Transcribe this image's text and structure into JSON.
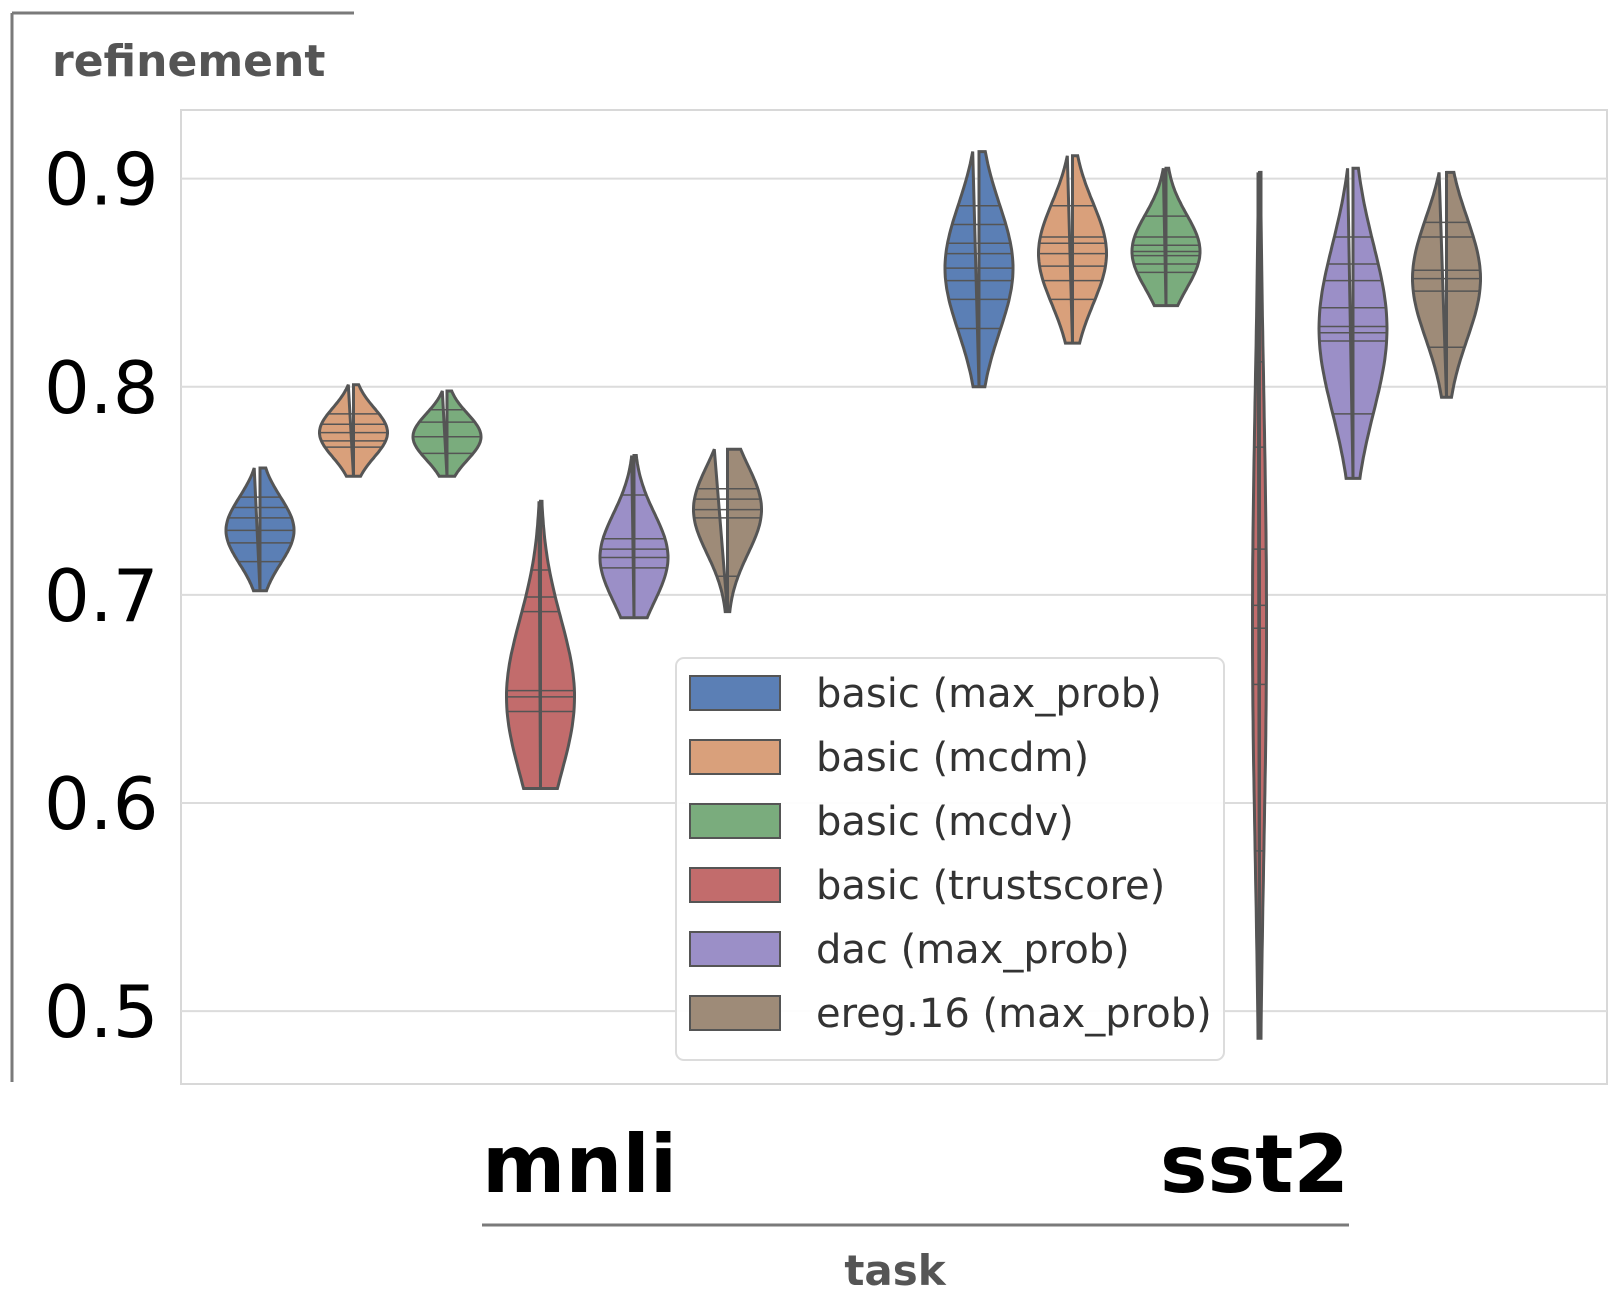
{
  "chart_data": {
    "type": "violin",
    "title": "",
    "ylabel": "refinement",
    "xlabel": "task",
    "ylim": [
      0.465,
      0.933
    ],
    "yticks": [
      "0.5",
      "0.6",
      "0.7",
      "0.8",
      "0.9"
    ],
    "categories": [
      "mnli",
      "sst2"
    ],
    "grid": true,
    "legend_position": "center",
    "series": [
      {
        "name": "basic (max_prob)",
        "color": "#5b7fb5",
        "values": {
          "mnli": {
            "min": 0.702,
            "max": 0.761,
            "median": 0.731,
            "lines": [
              0.716,
              0.725,
              0.731,
              0.737,
              0.742,
              0.747
            ]
          },
          "sst2": {
            "min": 0.8,
            "max": 0.913,
            "median": 0.857,
            "lines": [
              0.828,
              0.842,
              0.851,
              0.857,
              0.864,
              0.869,
              0.878,
              0.887
            ]
          }
        }
      },
      {
        "name": "basic (mcdm)",
        "color": "#d9a07b",
        "values": {
          "mnli": {
            "min": 0.757,
            "max": 0.801,
            "median": 0.778,
            "lines": [
              0.771,
              0.774,
              0.778,
              0.782,
              0.787
            ]
          },
          "sst2": {
            "min": 0.821,
            "max": 0.911,
            "median": 0.864,
            "lines": [
              0.842,
              0.851,
              0.858,
              0.864,
              0.869,
              0.872,
              0.887
            ]
          }
        }
      },
      {
        "name": "basic (mcdv)",
        "color": "#7aac7d",
        "values": {
          "mnli": {
            "min": 0.757,
            "max": 0.798,
            "median": 0.776,
            "lines": [
              0.768,
              0.776,
              0.783,
              0.789
            ]
          },
          "sst2": {
            "min": 0.839,
            "max": 0.905,
            "median": 0.865,
            "lines": [
              0.855,
              0.859,
              0.863,
              0.865,
              0.868,
              0.872,
              0.882
            ]
          }
        }
      },
      {
        "name": "basic (trustscore)",
        "color": "#c26c6c",
        "values": {
          "mnli": {
            "min": 0.607,
            "max": 0.745,
            "median": 0.651,
            "lines": [
              0.644,
              0.651,
              0.654,
              0.692,
              0.699,
              0.712
            ]
          },
          "sst2": {
            "min": 0.487,
            "max": 0.903,
            "median": 0.686,
            "lines": [
              0.577,
              0.657,
              0.684,
              0.695,
              0.722,
              0.771,
              0.812
            ]
          }
        }
      },
      {
        "name": "dac (max_prob)",
        "color": "#9b8fc7",
        "values": {
          "mnli": {
            "min": 0.689,
            "max": 0.767,
            "median": 0.718,
            "lines": [
              0.713,
              0.718,
              0.722,
              0.727,
              0.748
            ]
          },
          "sst2": {
            "min": 0.756,
            "max": 0.905,
            "median": 0.828,
            "lines": [
              0.787,
              0.822,
              0.826,
              0.829,
              0.838,
              0.851,
              0.859,
              0.872
            ]
          }
        }
      },
      {
        "name": "ereg.16 (max_prob)",
        "color": "#9e8b78",
        "values": {
          "mnli": {
            "min": 0.692,
            "max": 0.77,
            "median": 0.741,
            "lines": [
              0.709,
              0.737,
              0.741,
              0.746,
              0.751
            ]
          },
          "sst2": {
            "min": 0.795,
            "max": 0.903,
            "median": 0.852,
            "lines": [
              0.819,
              0.846,
              0.852,
              0.856,
              0.872,
              0.879
            ]
          }
        }
      }
    ]
  }
}
